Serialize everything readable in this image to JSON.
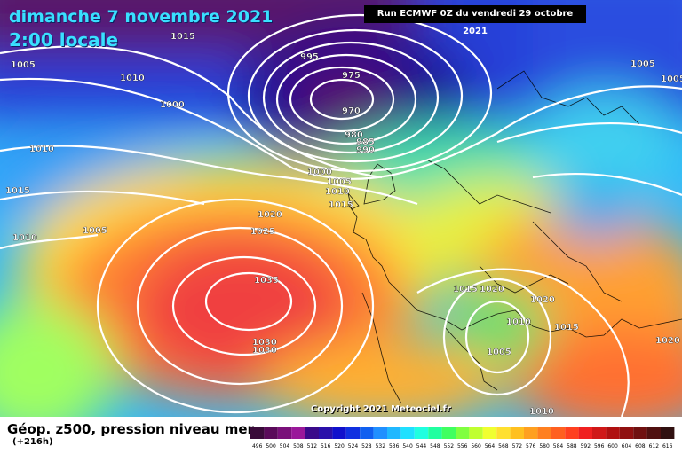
{
  "header": {
    "date": "dimanche 7 novembre 2021",
    "time": "2:00 locale",
    "run": "Run ECMWF 0Z du vendredi 29 octobre 2021"
  },
  "map": {
    "copyright": "Copyright 2021 Meteociel.fr",
    "pressure_labels": [
      "1015",
      "1005",
      "1010",
      "1000",
      "995",
      "975",
      "970",
      "980",
      "985",
      "990",
      "1005",
      "1005",
      "1010",
      "1015",
      "1000",
      "1005",
      "1010",
      "1015",
      "1020",
      "1025",
      "1010",
      "1005",
      "1035",
      "1030",
      "1030",
      "1015",
      "1020",
      "1020",
      "1010",
      "1015",
      "1005",
      "1020",
      "1010"
    ]
  },
  "footer": {
    "field": "Géop. z500, pression niveau mer",
    "hour": "(+216h)"
  },
  "legend": {
    "scale_values": [
      "496",
      "500",
      "504",
      "508",
      "512",
      "516",
      "520",
      "524",
      "528",
      "532",
      "536",
      "540",
      "544",
      "548",
      "552",
      "556",
      "560",
      "564",
      "568",
      "572",
      "576",
      "580",
      "584",
      "588",
      "592",
      "596",
      "600",
      "604",
      "608",
      "612",
      "616"
    ],
    "scale_colors": [
      "#3a0a3a",
      "#5a0a5a",
      "#7a107a",
      "#9a189a",
      "#3a0a8a",
      "#2a10aa",
      "#1010cc",
      "#1030e0",
      "#1060f0",
      "#2090ff",
      "#20b8ff",
      "#20e0ff",
      "#20ffe0",
      "#20ffa0",
      "#40ff60",
      "#80ff40",
      "#c0ff30",
      "#f0ff30",
      "#ffe030",
      "#ffc020",
      "#ffa020",
      "#ff8020",
      "#ff6020",
      "#ff4020",
      "#f02020",
      "#d01818",
      "#b01010",
      "#901010",
      "#701010",
      "#501010",
      "#301010"
    ]
  }
}
